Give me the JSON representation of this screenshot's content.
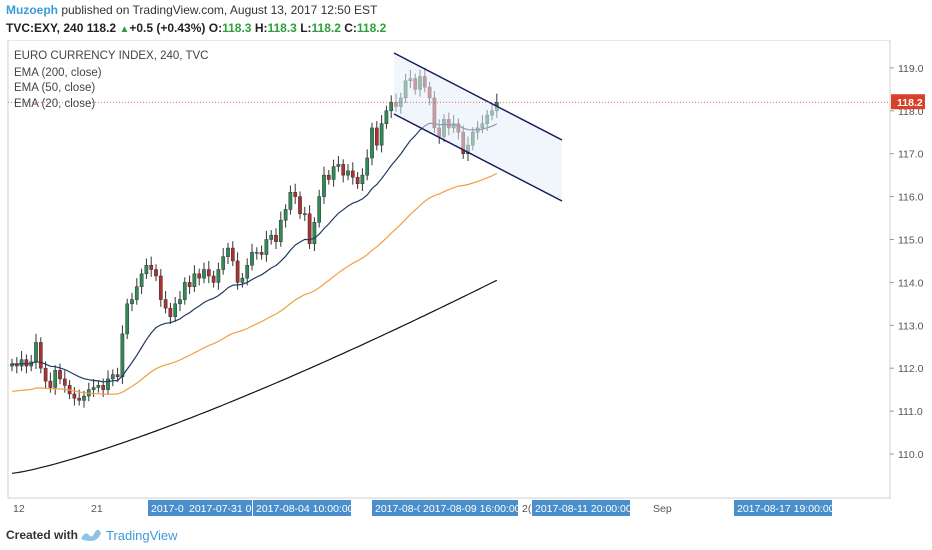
{
  "header": {
    "author": "Muzoeph",
    "published": " published on TradingView.com, August 13, 2017 12:50 EST",
    "symbol": "TVC:EXY, 240",
    "price": "118.2",
    "change": "+0.5 (+0.43%)",
    "o_label": "O:",
    "o_value": "118.3",
    "h_label": "H:",
    "h_value": "118.3",
    "l_label": "L:",
    "l_value": "118.2",
    "c_label": "C:",
    "c_value": "118.2"
  },
  "footer": {
    "created_with": "Created with",
    "brand": "TradingView"
  },
  "chart_data": {
    "type": "candlestick",
    "title": "EURO CURRENCY INDEX, 240, TVC",
    "legend": [
      "EMA (200, close)",
      "EMA (50, close)",
      "EMA (20, close)"
    ],
    "y_ticks": [
      110.0,
      111.0,
      112.0,
      113.0,
      114.0,
      115.0,
      116.0,
      117.0,
      118.0,
      119.0
    ],
    "ylim": [
      109.0,
      119.5
    ],
    "last_price": 118.2,
    "x_labels": [
      {
        "text": "12",
        "highlight": false
      },
      {
        "text": "21",
        "highlight": false
      },
      {
        "text": "2017-0",
        "highlight": true
      },
      {
        "text": "2017-07-31 07:",
        "highlight": true
      },
      {
        "text": "2017-08-04 10:00:00",
        "highlight": true
      },
      {
        "text": "2017-08-0",
        "highlight": true
      },
      {
        "text": "2017-08-09 16:00:00",
        "highlight": true
      },
      {
        "text": "2(",
        "highlight": false
      },
      {
        "text": "2017-08-11 20:00:00",
        "highlight": true
      },
      {
        "text": "Sep",
        "highlight": false
      },
      {
        "text": "2017-08-17 19:00:00",
        "highlight": true
      }
    ],
    "closes": [
      112.1,
      112.05,
      112.2,
      112.05,
      112.15,
      112.6,
      112.0,
      111.7,
      111.55,
      111.95,
      111.75,
      111.6,
      111.4,
      111.3,
      111.25,
      111.35,
      111.5,
      111.55,
      111.6,
      111.5,
      111.75,
      111.85,
      111.8,
      112.8,
      113.5,
      113.6,
      113.9,
      114.2,
      114.4,
      114.3,
      114.15,
      113.6,
      113.4,
      113.2,
      113.5,
      113.6,
      114.0,
      113.9,
      114.2,
      114.1,
      114.3,
      114.15,
      114.0,
      114.3,
      114.6,
      114.8,
      114.5,
      114.0,
      114.1,
      114.4,
      114.7,
      114.7,
      114.65,
      115.0,
      115.1,
      114.95,
      115.45,
      115.7,
      116.1,
      116.0,
      115.6,
      115.6,
      114.9,
      115.4,
      116.0,
      116.5,
      116.4,
      116.7,
      116.75,
      116.5,
      116.6,
      116.45,
      116.3,
      116.5,
      116.9,
      117.6,
      117.2,
      117.7,
      118.0,
      118.2,
      118.1,
      118.3,
      118.7,
      118.75,
      118.5,
      118.8,
      118.55,
      118.3,
      117.6,
      117.4,
      117.8,
      117.6,
      117.7,
      117.5,
      117.0,
      117.2,
      117.5,
      117.6,
      117.7,
      117.9,
      118.0,
      118.2
    ]
  }
}
